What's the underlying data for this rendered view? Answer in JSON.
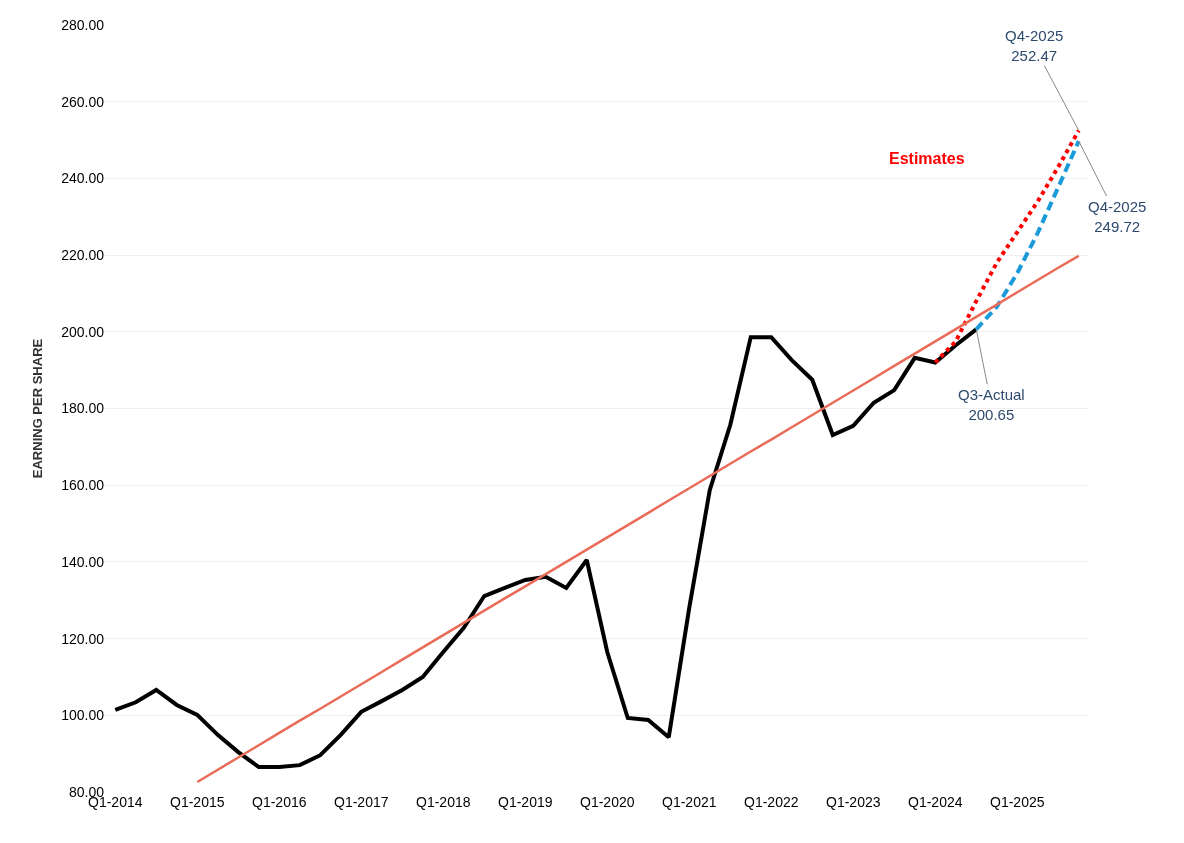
{
  "chart_data": {
    "type": "line",
    "ylabel": "EARNING PER SHARE",
    "categories": [
      "Q1-2014",
      null,
      null,
      null,
      "Q1-2015",
      null,
      null,
      null,
      "Q1-2016",
      null,
      null,
      null,
      "Q1-2017",
      null,
      null,
      null,
      "Q1-2018",
      null,
      null,
      null,
      "Q1-2019",
      null,
      null,
      null,
      "Q1-2020",
      null,
      null,
      null,
      "Q1-2021",
      null,
      null,
      null,
      "Q1-2022",
      null,
      null,
      null,
      "Q1-2023",
      null,
      null,
      null,
      "Q1-2024",
      null,
      null,
      null,
      "Q1-2025",
      null,
      null,
      null
    ],
    "series": [
      {
        "color": "#000000",
        "line_style": "solid",
        "values": [
          101.4,
          103.4,
          106.6,
          102.7,
          100.1,
          94.9,
          90.4,
          86.5,
          86.5,
          87.0,
          89.6,
          94.9,
          100.9,
          103.7,
          106.6,
          110.0,
          116.5,
          122.8,
          131.1,
          133.2,
          135.3,
          136.1,
          133.2,
          140.5,
          116.5,
          99.3,
          98.8,
          94.3,
          128.0,
          158.7,
          175.7,
          198.6,
          198.6,
          192.6,
          187.5,
          173.1,
          175.5,
          181.5,
          184.8,
          193.2,
          192.0,
          196.5,
          200.65,
          null,
          null,
          null,
          null,
          null
        ],
        "value_labels": [
          null,
          null,
          null,
          null,
          null,
          null,
          null,
          null,
          null,
          null,
          null,
          null,
          null,
          null,
          null,
          null,
          null,
          null,
          null,
          null,
          null,
          null,
          null,
          null,
          null,
          null,
          null,
          null,
          null,
          null,
          null,
          null,
          null,
          null,
          null,
          null,
          null,
          null,
          null,
          null,
          null,
          null,
          "Q3-Actual\n200.65",
          null,
          null,
          null,
          null,
          null
        ]
      },
      {
        "color": "#ff0000",
        "line_style": "dotted",
        "values": [
          null,
          null,
          null,
          null,
          null,
          null,
          null,
          null,
          null,
          null,
          null,
          null,
          null,
          null,
          null,
          null,
          null,
          null,
          null,
          null,
          null,
          null,
          null,
          null,
          null,
          null,
          null,
          null,
          null,
          null,
          null,
          null,
          null,
          null,
          null,
          null,
          null,
          null,
          null,
          null,
          192.0,
          197.5,
          208.0,
          218.0,
          226.0,
          234.0,
          243.0,
          252.47
        ],
        "value_labels": [
          null,
          null,
          null,
          null,
          null,
          null,
          null,
          null,
          null,
          null,
          null,
          null,
          null,
          null,
          null,
          null,
          null,
          null,
          null,
          null,
          null,
          null,
          null,
          null,
          null,
          null,
          null,
          null,
          null,
          null,
          null,
          null,
          null,
          null,
          null,
          null,
          null,
          null,
          null,
          null,
          null,
          null,
          null,
          null,
          null,
          null,
          null,
          "Q4-2025\n252.47"
        ]
      },
      {
        "color": "#1a9ad9",
        "line_style": "dashed",
        "values": [
          null,
          null,
          null,
          null,
          null,
          null,
          null,
          null,
          null,
          null,
          null,
          null,
          null,
          null,
          null,
          null,
          null,
          null,
          null,
          null,
          null,
          null,
          null,
          null,
          null,
          null,
          null,
          null,
          null,
          null,
          null,
          null,
          null,
          null,
          null,
          null,
          null,
          null,
          null,
          null,
          null,
          null,
          200.65,
          206.5,
          215.3,
          225.8,
          237.7,
          249.72
        ],
        "value_labels": [
          null,
          null,
          null,
          null,
          null,
          null,
          null,
          null,
          null,
          null,
          null,
          null,
          null,
          null,
          null,
          null,
          null,
          null,
          null,
          null,
          null,
          null,
          null,
          null,
          null,
          null,
          null,
          null,
          null,
          null,
          null,
          null,
          null,
          null,
          null,
          null,
          null,
          null,
          null,
          null,
          null,
          null,
          null,
          null,
          null,
          null,
          null,
          "Q4-2025\n249.72"
        ]
      },
      {
        "color": "#ea6b57",
        "line_style": "solid",
        "values": [
          null,
          null,
          null,
          null,
          82.6,
          85.8,
          89.0,
          92.2,
          95.4,
          98.6,
          101.7,
          104.9,
          108.1,
          111.3,
          114.5,
          117.7,
          120.9,
          124.1,
          127.3,
          130.5,
          133.6,
          136.8,
          140.0,
          143.2,
          146.4,
          149.6,
          152.8,
          156.0,
          159.2,
          162.4,
          165.6,
          168.8,
          171.9,
          175.1,
          178.3,
          181.5,
          184.7,
          187.9,
          191.1,
          194.3,
          197.5,
          200.7,
          203.9,
          207.1,
          210.3,
          213.5,
          216.7,
          219.8
        ]
      }
    ],
    "annotations": [
      "Estimates"
    ],
    "ylim": [
      80,
      280
    ],
    "yticks": [
      {
        "value": 80,
        "label": "80.00"
      },
      {
        "value": 100,
        "label": "100.00"
      },
      {
        "value": 120,
        "label": "120.00"
      },
      {
        "value": 140,
        "label": "140.00"
      },
      {
        "value": 160,
        "label": "160.00"
      },
      {
        "value": 180,
        "label": "180.00"
      },
      {
        "value": 200,
        "label": "200.00"
      },
      {
        "value": 220,
        "label": "220.00"
      },
      {
        "value": 240,
        "label": "240.00"
      },
      {
        "value": 260,
        "label": "260.00"
      },
      {
        "value": 280,
        "label": "280.00"
      }
    ],
    "grid": "y",
    "marker": "none"
  }
}
